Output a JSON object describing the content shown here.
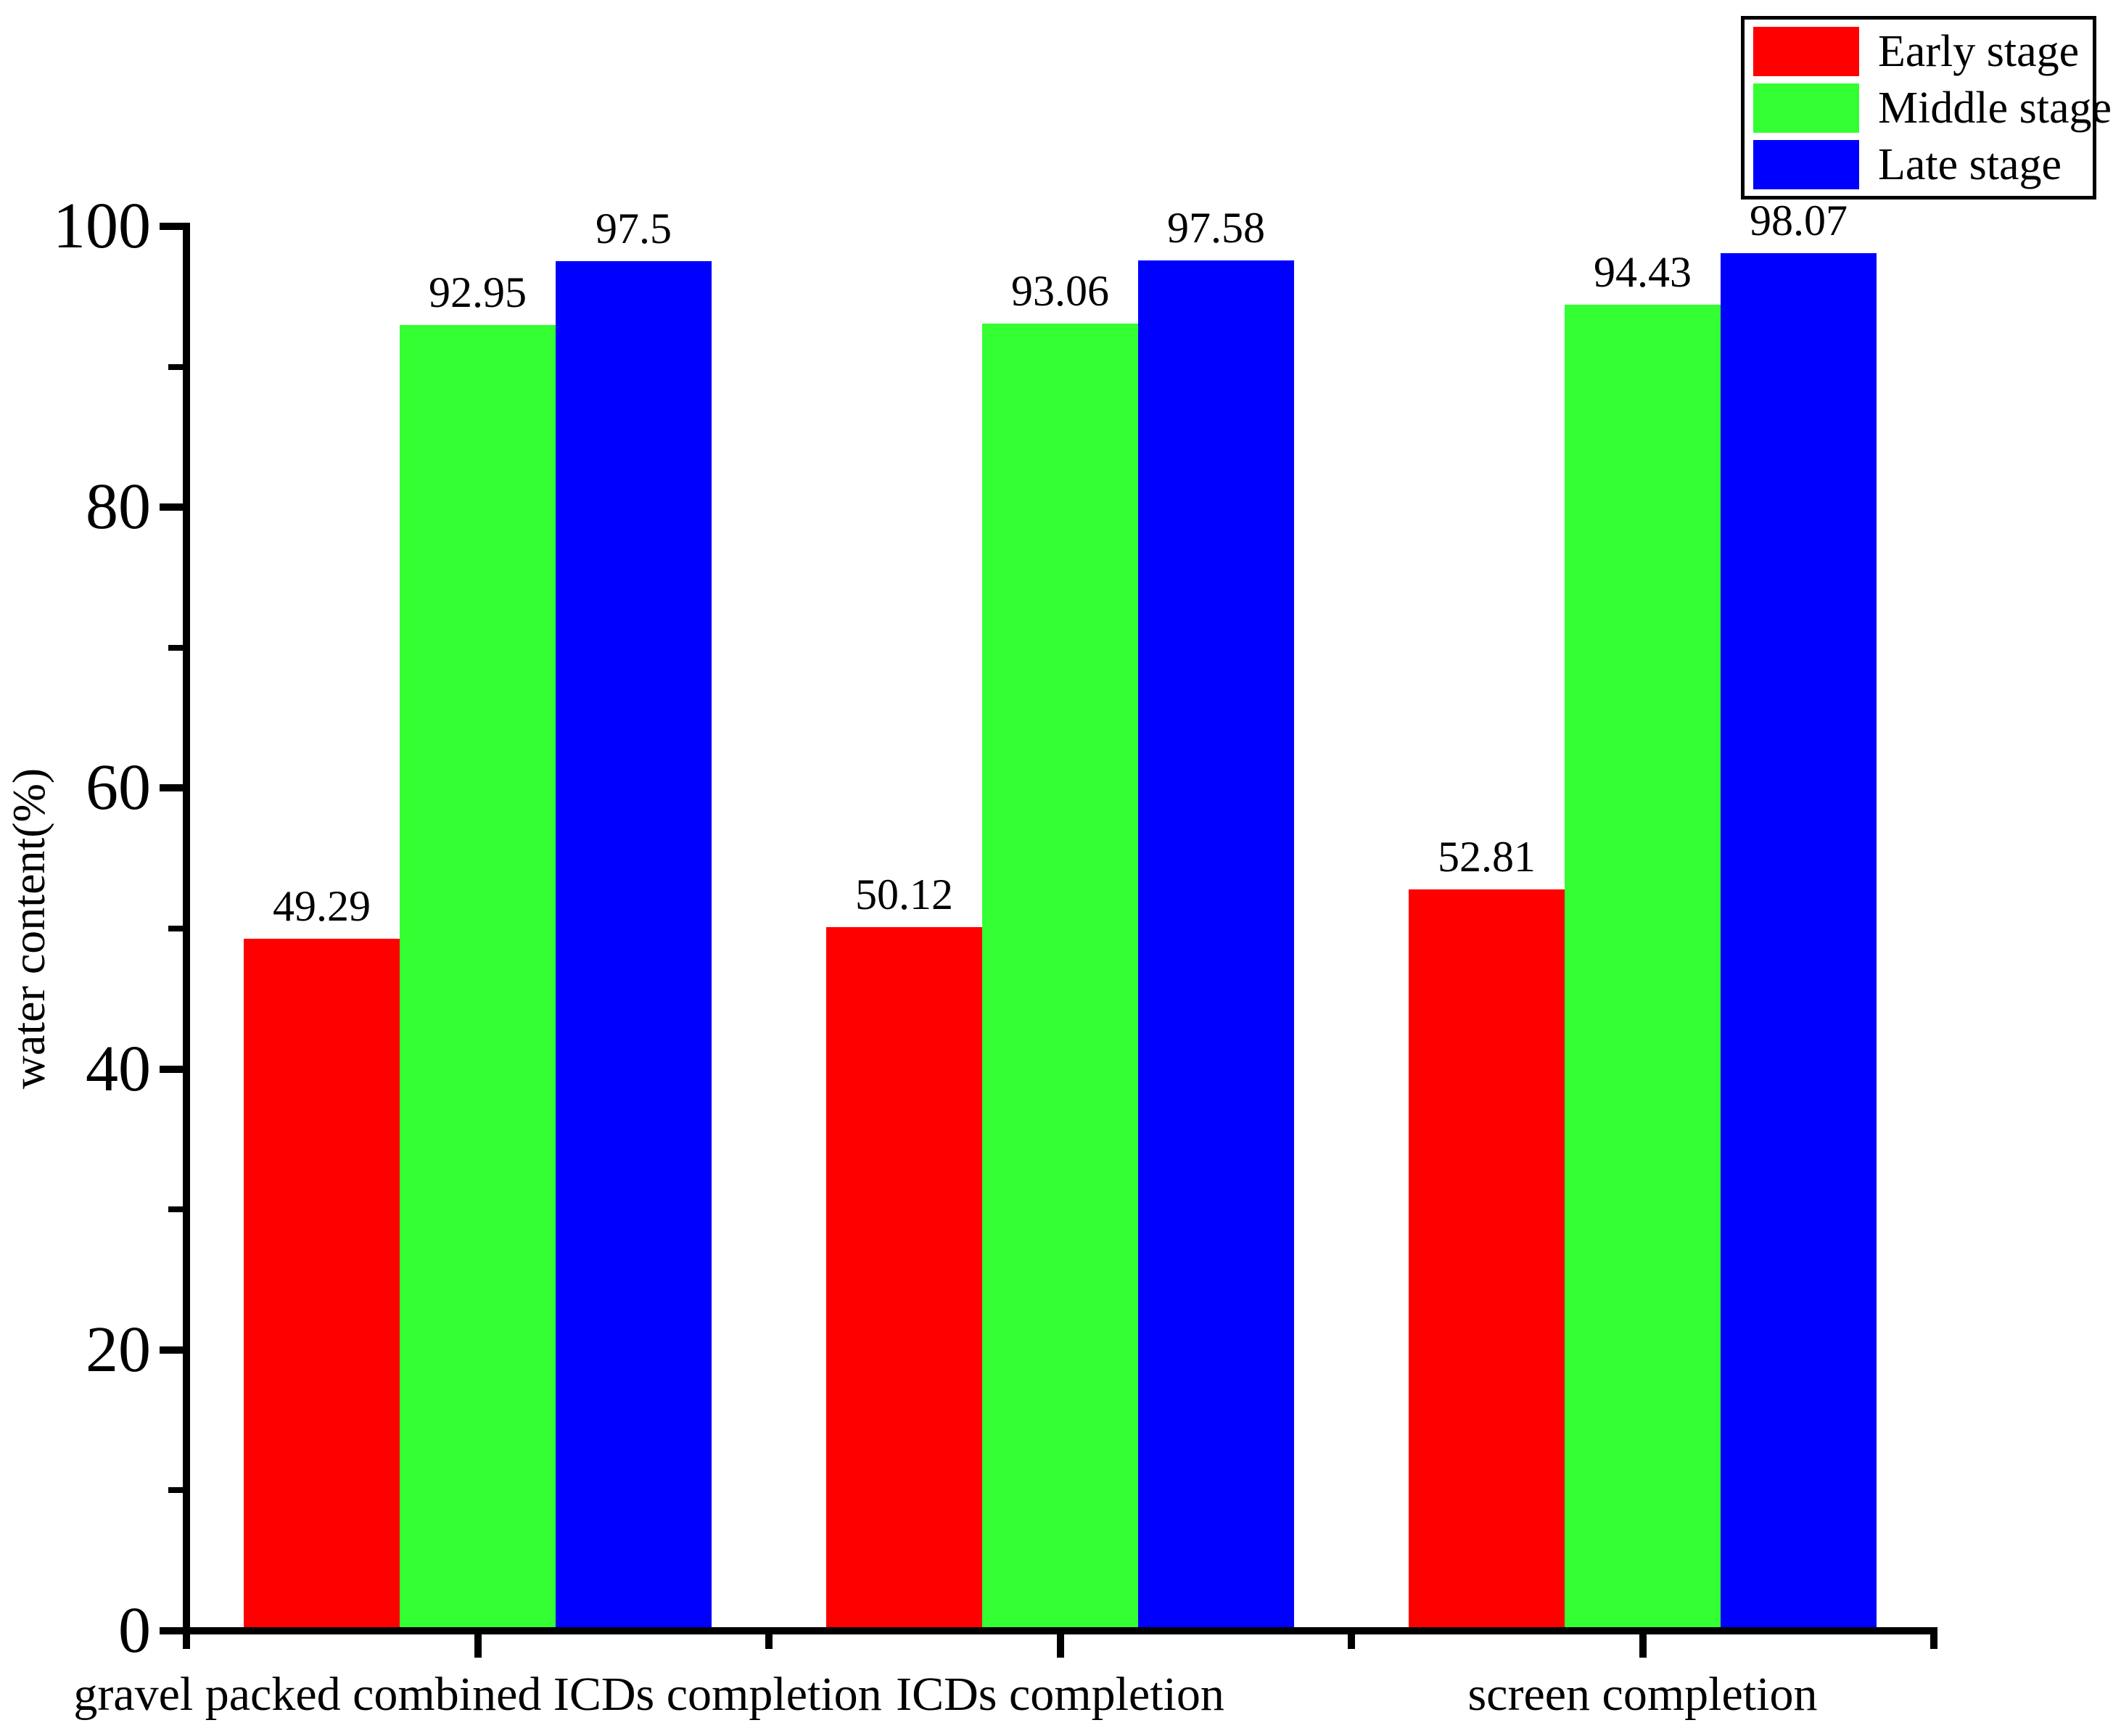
{
  "chart_data": {
    "type": "bar",
    "title": "",
    "categories": [
      "gravel packed combined ICDs completion",
      "ICDs completion",
      "screen completion"
    ],
    "series": [
      {
        "name": "Early stage",
        "color": "#FF0000",
        "values": [
          49.29,
          50.12,
          52.81
        ],
        "labels": [
          "49.29",
          "50.12",
          "52.81"
        ]
      },
      {
        "name": "Middle stage",
        "color": "#33FF33",
        "values": [
          92.95,
          93.06,
          94.43
        ],
        "labels": [
          "92.95",
          "93.06",
          "94.43"
        ]
      },
      {
        "name": "Late stage",
        "color": "#0000FF",
        "values": [
          97.5,
          97.58,
          98.07
        ],
        "labels": [
          "97.5",
          "97.58",
          "98.07"
        ]
      }
    ],
    "xlabel": "",
    "ylabel": "water content(%)",
    "ylim": [
      0,
      100
    ],
    "yticks_major": [
      0,
      20,
      40,
      60,
      80,
      100
    ],
    "yticks_minor": [
      10,
      30,
      50,
      70,
      90
    ],
    "ytick_labels": [
      "0",
      "20",
      "40",
      "60",
      "80",
      "100"
    ],
    "grid": false,
    "legend_position": "top-right",
    "value_labels_shown": true
  },
  "colors": {
    "axis": "#000000",
    "text": "#000000",
    "background": "#FFFFFF"
  }
}
